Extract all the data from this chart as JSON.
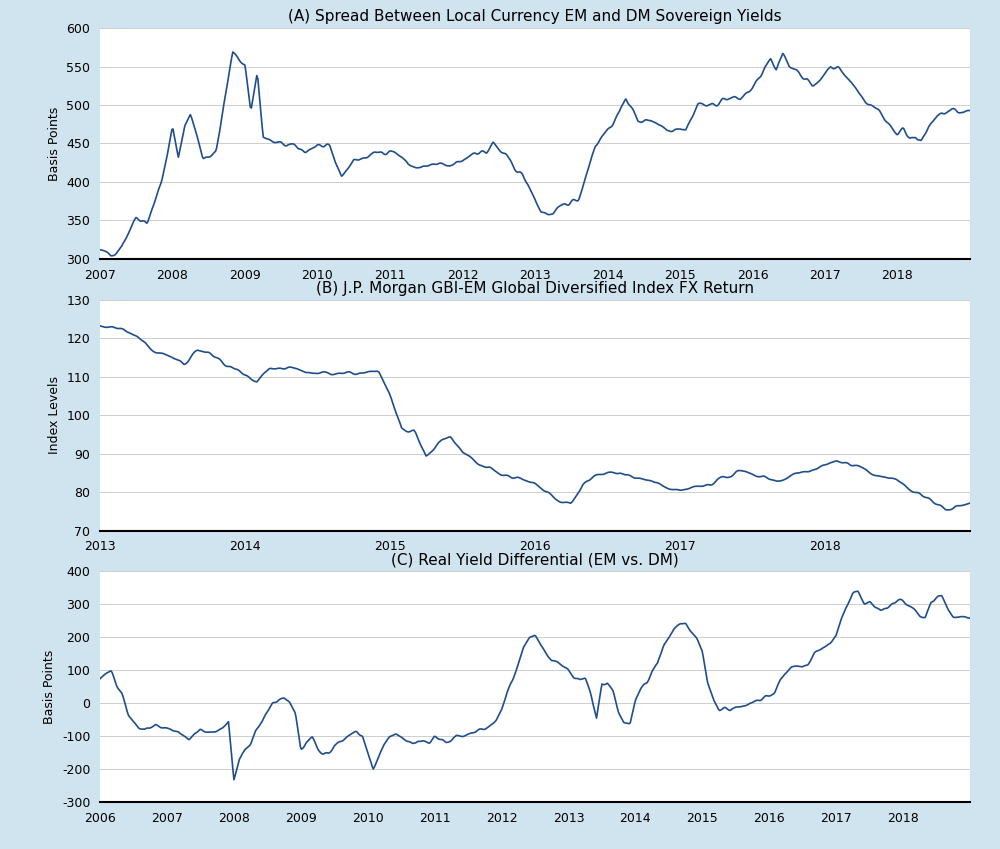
{
  "chart_a": {
    "title": "(A) Spread Between Local Currency EM and DM Sovereign Yields",
    "ylabel": "Basis Points",
    "xlim_start": 2007.0,
    "xlim_end": 2019.0,
    "ylim": [
      300,
      600
    ],
    "yticks": [
      300,
      350,
      400,
      450,
      500,
      550,
      600
    ],
    "xticks": [
      2007,
      2008,
      2009,
      2010,
      2011,
      2012,
      2013,
      2014,
      2015,
      2016,
      2017,
      2018
    ],
    "line_color": "#1f4e8c",
    "bg_color": "#ffffff"
  },
  "chart_b": {
    "title": "(B) J.P. Morgan GBI-EM Global Diversified Index FX Return",
    "ylabel": "Index Levels",
    "xlim_start": 2013.0,
    "xlim_end": 2019.0,
    "ylim": [
      70,
      130
    ],
    "yticks": [
      70,
      80,
      90,
      100,
      110,
      120,
      130
    ],
    "xticks": [
      2013,
      2014,
      2015,
      2016,
      2017,
      2018
    ],
    "line_color": "#1f4e8c",
    "bg_color": "#ffffff"
  },
  "chart_c": {
    "title": "(C) Real Yield Differential (EM vs. DM)",
    "ylabel": "Basis Points",
    "xlim_start": 2006.0,
    "xlim_end": 2019.0,
    "ylim": [
      -300,
      400
    ],
    "yticks": [
      -300,
      -200,
      -100,
      0,
      100,
      200,
      300,
      400
    ],
    "xticks": [
      2006,
      2007,
      2008,
      2009,
      2010,
      2011,
      2012,
      2013,
      2014,
      2015,
      2016,
      2017,
      2018
    ],
    "line_color": "#1f4e8c",
    "bg_color": "#ffffff"
  },
  "separator_color": "#d0e4f0",
  "outer_bg": "#d0e4f0",
  "line_width": 1.2,
  "title_fontsize": 11,
  "label_fontsize": 9,
  "tick_fontsize": 9
}
